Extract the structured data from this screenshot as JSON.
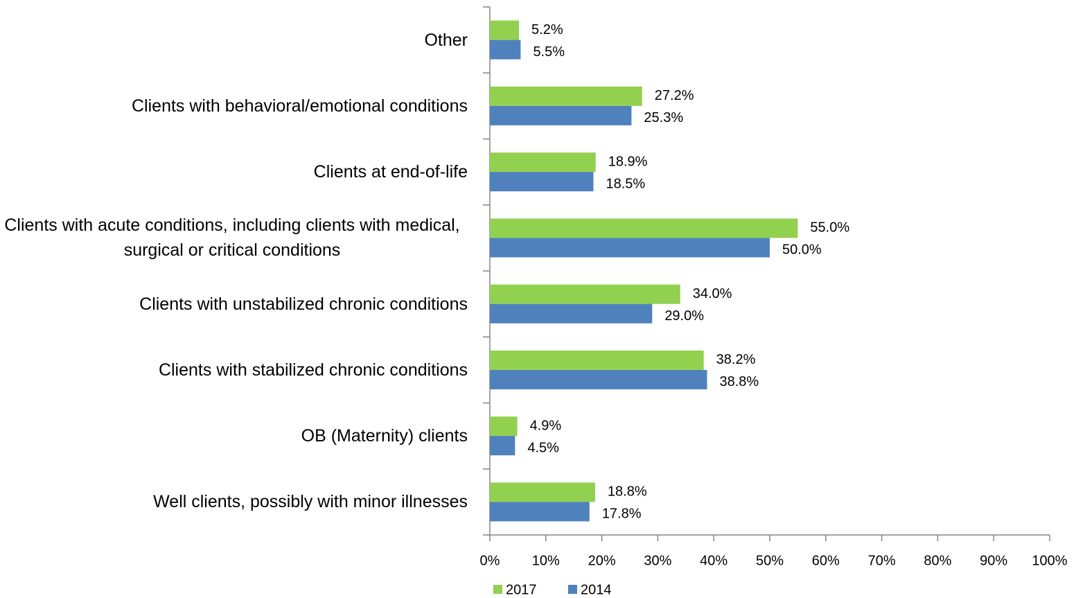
{
  "chart_data": {
    "type": "barh",
    "categories": [
      "Other",
      "Clients with behavioral/emotional conditions",
      "Clients at end-of-life",
      "Clients with acute conditions, including clients with medical, surgical or critical conditions",
      "Clients with unstabilized chronic conditions",
      "Clients with stabilized chronic conditions",
      "OB (Maternity) clients",
      "Well clients, possibly with minor illnesses"
    ],
    "series": [
      {
        "name": "2017",
        "color": "#92d050",
        "values": [
          5.2,
          27.2,
          18.9,
          55.0,
          34.0,
          38.2,
          4.9,
          18.8
        ],
        "value_labels": [
          "5.2%",
          "27.2%",
          "18.9%",
          "55.0%",
          "34.0%",
          "38.2%",
          "4.9%",
          "18.8%"
        ]
      },
      {
        "name": "2014",
        "color": "#4f81bd",
        "values": [
          5.5,
          25.3,
          18.5,
          50.0,
          29.0,
          38.8,
          4.5,
          17.8
        ],
        "value_labels": [
          "5.5%",
          "25.3%",
          "18.5%",
          "50.0%",
          "29.0%",
          "38.8%",
          "4.5%",
          "17.8%"
        ]
      }
    ],
    "xlim": [
      0,
      100
    ],
    "xticks": [
      {
        "value": 0,
        "label": "0%"
      },
      {
        "value": 10,
        "label": "10%"
      },
      {
        "value": 20,
        "label": "20%"
      },
      {
        "value": 30,
        "label": "30%"
      },
      {
        "value": 40,
        "label": "40%"
      },
      {
        "value": 50,
        "label": "50%"
      },
      {
        "value": 60,
        "label": "60%"
      },
      {
        "value": 70,
        "label": "70%"
      },
      {
        "value": 80,
        "label": "80%"
      },
      {
        "value": 90,
        "label": "90%"
      },
      {
        "value": 100,
        "label": "100%"
      }
    ],
    "legend": "bottom"
  }
}
